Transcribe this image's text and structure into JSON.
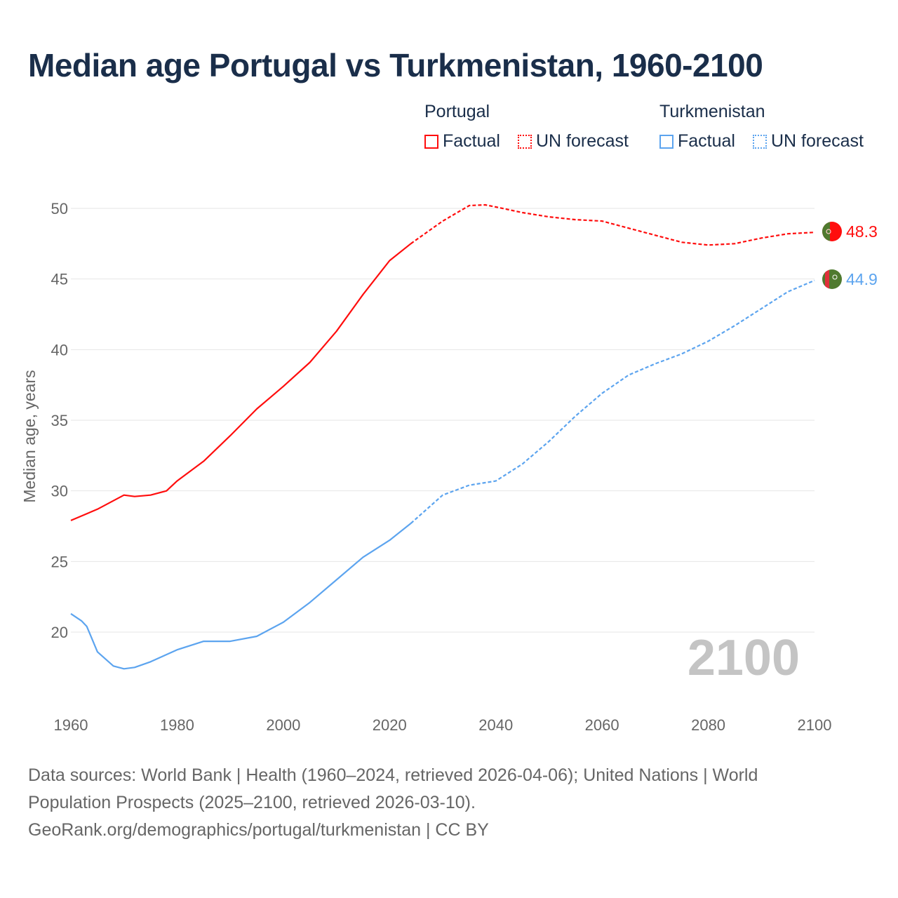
{
  "title": "Median age Portugal vs Turkmenistan, 1960-2100",
  "legend": {
    "groups": [
      {
        "name": "Portugal",
        "color": "#ff0d0d",
        "factual": "Factual",
        "forecast": "UN forecast"
      },
      {
        "name": "Turkmenistan",
        "color": "#5ca4ef",
        "factual": "Factual",
        "forecast": "UN forecast"
      }
    ]
  },
  "current_year_label": "2100",
  "end_labels": {
    "portugal": "48.3",
    "turkmenistan": "44.9"
  },
  "footer": {
    "line1": "Data sources: World Bank | Health (1960–2024, retrieved 2026-04-06); United Nations | World",
    "line2": "Population Prospects (2025–2100, retrieved 2026-03-10).",
    "line3": "GeoRank.org/demographics/portugal/turkmenistan | CC BY"
  },
  "chart_data": {
    "type": "line",
    "title": "Median age Portugal vs Turkmenistan, 1960-2100",
    "xlabel": "",
    "ylabel": "Median age, years",
    "xlim": [
      1960,
      2100
    ],
    "ylim": [
      15,
      52
    ],
    "xticks": [
      1960,
      1980,
      2000,
      2020,
      2040,
      2060,
      2080,
      2100
    ],
    "yticks": [
      20,
      25,
      30,
      35,
      40,
      45,
      50
    ],
    "grid": true,
    "legend_position": "top-right",
    "forecast_start": 2024,
    "series": [
      {
        "name": "Portugal",
        "color": "#ff0d0d",
        "x": [
          1960,
          1965,
          1970,
          1972,
          1975,
          1978,
          1980,
          1985,
          1990,
          1995,
          2000,
          2005,
          2010,
          2015,
          2020,
          2024,
          2030,
          2035,
          2038,
          2040,
          2045,
          2050,
          2055,
          2060,
          2065,
          2070,
          2075,
          2080,
          2085,
          2090,
          2095,
          2100
        ],
        "y": [
          27.9,
          28.7,
          29.7,
          29.6,
          29.7,
          30.0,
          30.7,
          32.1,
          33.9,
          35.8,
          37.4,
          39.1,
          41.3,
          43.9,
          46.3,
          47.5,
          49.1,
          50.2,
          50.25,
          50.1,
          49.7,
          49.4,
          49.2,
          49.1,
          48.6,
          48.1,
          47.6,
          47.4,
          47.5,
          47.9,
          48.2,
          48.3
        ]
      },
      {
        "name": "Turkmenistan",
        "color": "#5ca4ef",
        "x": [
          1960,
          1962,
          1963,
          1965,
          1968,
          1970,
          1972,
          1975,
          1980,
          1985,
          1990,
          1995,
          2000,
          2005,
          2010,
          2015,
          2020,
          2024,
          2030,
          2035,
          2040,
          2045,
          2050,
          2055,
          2060,
          2065,
          2070,
          2075,
          2080,
          2085,
          2090,
          2095,
          2100
        ],
        "y": [
          21.3,
          20.8,
          20.4,
          18.6,
          17.6,
          17.4,
          17.5,
          17.9,
          18.75,
          19.35,
          19.35,
          19.7,
          20.7,
          22.1,
          23.7,
          25.3,
          26.5,
          27.7,
          29.7,
          30.4,
          30.7,
          31.9,
          33.5,
          35.3,
          36.9,
          38.2,
          39.0,
          39.7,
          40.6,
          41.7,
          42.9,
          44.1,
          44.9
        ]
      }
    ]
  }
}
